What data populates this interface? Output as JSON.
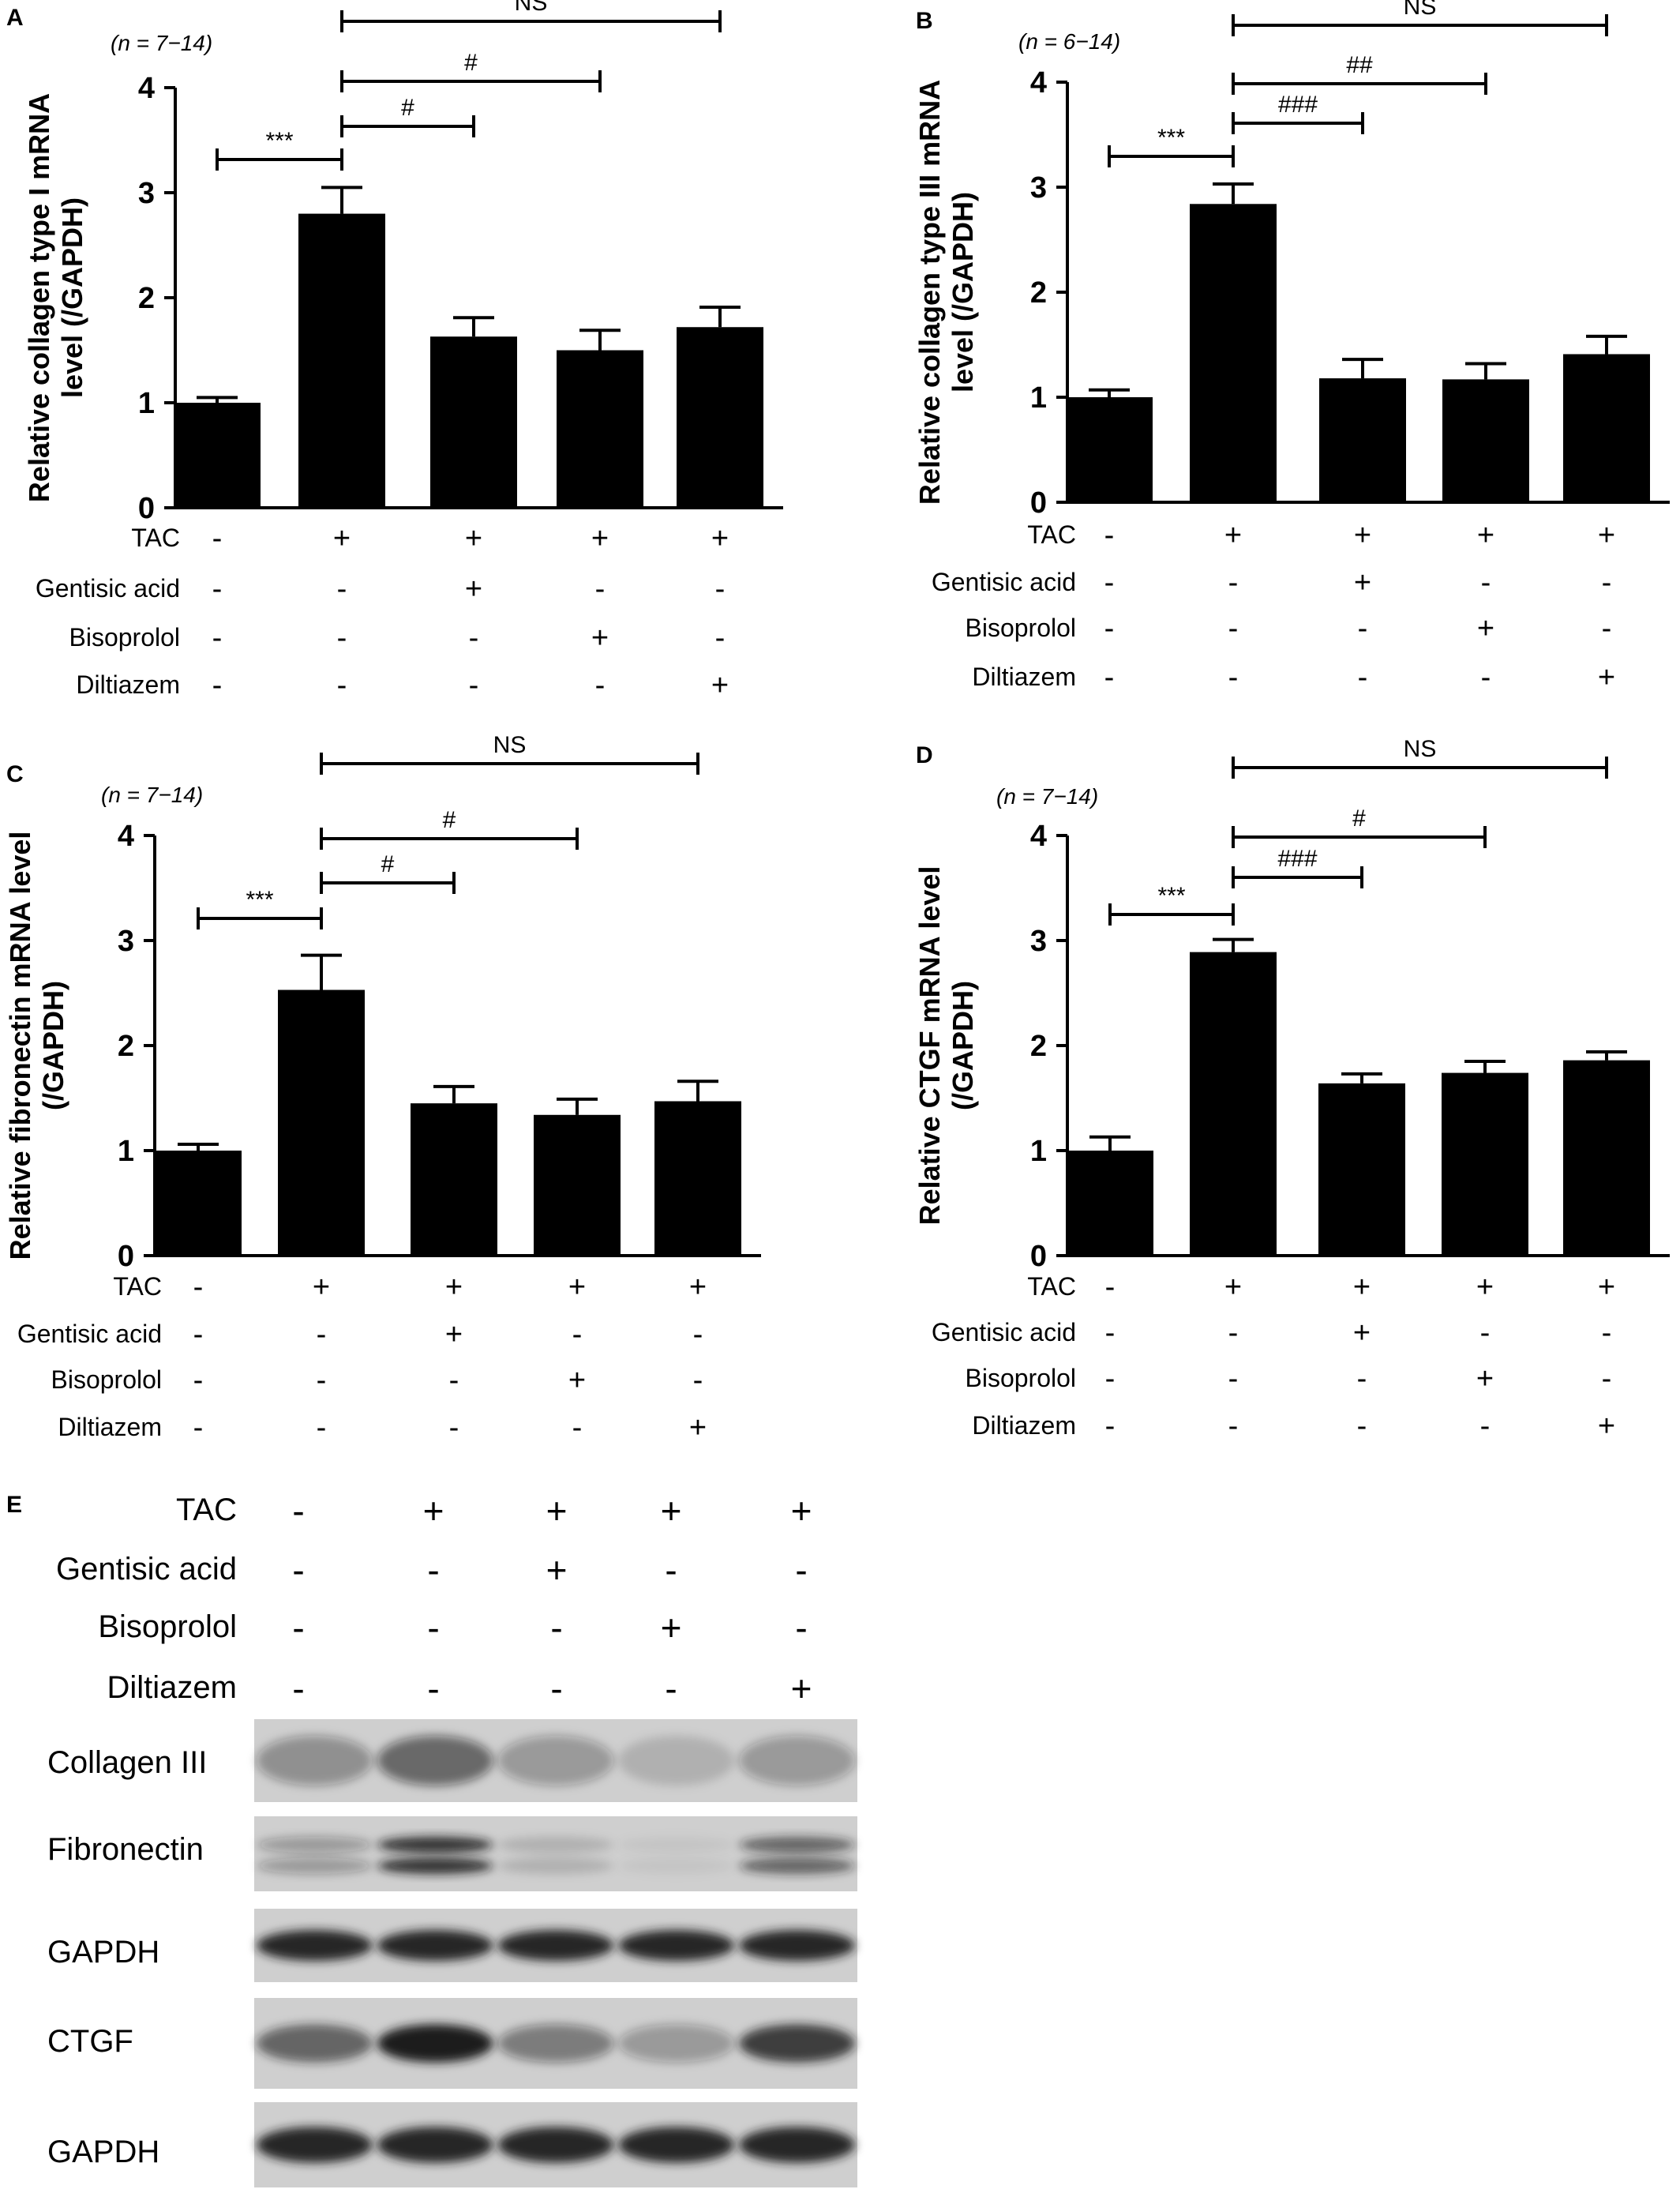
{
  "colors": {
    "bar": "#000000",
    "axis": "#000000",
    "blot_background": "#cfcfcf",
    "blot_band": "#1a1a1a"
  },
  "treatment_rows": [
    "TAC",
    "Gentisic acid",
    "Bisoprolol",
    "Diltiazem"
  ],
  "treatment_signs": [
    [
      "-",
      "+",
      "+",
      "+",
      "+"
    ],
    [
      "-",
      "-",
      "+",
      "-",
      "-"
    ],
    [
      "-",
      "-",
      "-",
      "+",
      "-"
    ],
    [
      "-",
      "-",
      "-",
      "-",
      "+"
    ]
  ],
  "chart_data": [
    {
      "panel": "A",
      "type": "bar",
      "n_label": "(n = 7−14)",
      "ylabel": "Relative collagen type I mRNA level (/GAPDH)",
      "ylabel_lines": [
        "Relative collagen type I mRNA",
        "level (/GAPDH)"
      ],
      "ylim": [
        0,
        4
      ],
      "yticks": [
        "0",
        "1",
        "2",
        "3",
        "4"
      ],
      "values": [
        1.0,
        2.8,
        1.63,
        1.5,
        1.72
      ],
      "errors": [
        0.05,
        0.25,
        0.18,
        0.19,
        0.19
      ],
      "significance": [
        {
          "from": 0,
          "to": 1,
          "label": "***"
        },
        {
          "from": 1,
          "to": 2,
          "label": "#"
        },
        {
          "from": 1,
          "to": 3,
          "label": "#"
        },
        {
          "from": 1,
          "to": 4,
          "label": "NS"
        }
      ]
    },
    {
      "panel": "B",
      "type": "bar",
      "n_label": "(n = 6−14)",
      "ylabel": "Relative collagen type III mRNA level (/GAPDH)",
      "ylabel_lines": [
        "Relative collagen type III mRNA",
        "level (/GAPDH)"
      ],
      "ylim": [
        0,
        4
      ],
      "yticks": [
        "0",
        "1",
        "2",
        "3",
        "4"
      ],
      "values": [
        1.0,
        2.84,
        1.18,
        1.17,
        1.41
      ],
      "errors": [
        0.07,
        0.19,
        0.18,
        0.15,
        0.17
      ],
      "significance": [
        {
          "from": 0,
          "to": 1,
          "label": "***"
        },
        {
          "from": 1,
          "to": 2,
          "label": "###"
        },
        {
          "from": 1,
          "to": 3,
          "label": "##"
        },
        {
          "from": 1,
          "to": 4,
          "label": "NS"
        }
      ]
    },
    {
      "panel": "C",
      "type": "bar",
      "n_label": "(n = 7−14)",
      "ylabel": "Relative fibronectin mRNA level (/GAPDH)",
      "ylabel_lines": [
        "Relative fibronectin mRNA level",
        "(/GAPDH)"
      ],
      "ylim": [
        0,
        4
      ],
      "yticks": [
        "0",
        "1",
        "2",
        "3",
        "4"
      ],
      "values": [
        1.0,
        2.53,
        1.45,
        1.34,
        1.47
      ],
      "errors": [
        0.06,
        0.33,
        0.16,
        0.15,
        0.19
      ],
      "significance": [
        {
          "from": 0,
          "to": 1,
          "label": "***"
        },
        {
          "from": 1,
          "to": 2,
          "label": "#"
        },
        {
          "from": 1,
          "to": 3,
          "label": "#"
        },
        {
          "from": 1,
          "to": 4,
          "label": "NS"
        }
      ]
    },
    {
      "panel": "D",
      "type": "bar",
      "n_label": "(n = 7−14)",
      "ylabel": "Relative CTGF mRNA level (/GAPDH)",
      "ylabel_lines": [
        "Relative CTGF mRNA level",
        "(/GAPDH)"
      ],
      "ylim": [
        0,
        4
      ],
      "yticks": [
        "0",
        "1",
        "2",
        "3",
        "4"
      ],
      "values": [
        1.0,
        2.89,
        1.64,
        1.74,
        1.86
      ],
      "errors": [
        0.13,
        0.12,
        0.09,
        0.11,
        0.08
      ],
      "significance": [
        {
          "from": 0,
          "to": 1,
          "label": "***"
        },
        {
          "from": 1,
          "to": 2,
          "label": "###"
        },
        {
          "from": 1,
          "to": 3,
          "label": "#"
        },
        {
          "from": 1,
          "to": 4,
          "label": "NS"
        }
      ]
    }
  ],
  "western_blot": {
    "panel": "E",
    "lanes": 5,
    "blots": [
      {
        "label": "Collagen III",
        "intensity": [
          0.35,
          0.55,
          0.3,
          0.15,
          0.3
        ],
        "bands": 1,
        "diffuse": true
      },
      {
        "label": "Fibronectin",
        "intensity": [
          0.3,
          0.85,
          0.15,
          0.05,
          0.6
        ],
        "bands": 2,
        "diffuse": false
      },
      {
        "label": "GAPDH",
        "intensity": [
          0.95,
          0.95,
          0.95,
          0.95,
          0.95
        ],
        "bands": 1,
        "diffuse": false
      },
      {
        "label": "CTGF",
        "intensity": [
          0.6,
          1.0,
          0.45,
          0.3,
          0.8
        ],
        "bands": 1,
        "diffuse": false
      },
      {
        "label": "GAPDH",
        "intensity": [
          0.95,
          0.95,
          0.95,
          0.95,
          0.95
        ],
        "bands": 1,
        "diffuse": false
      }
    ]
  }
}
